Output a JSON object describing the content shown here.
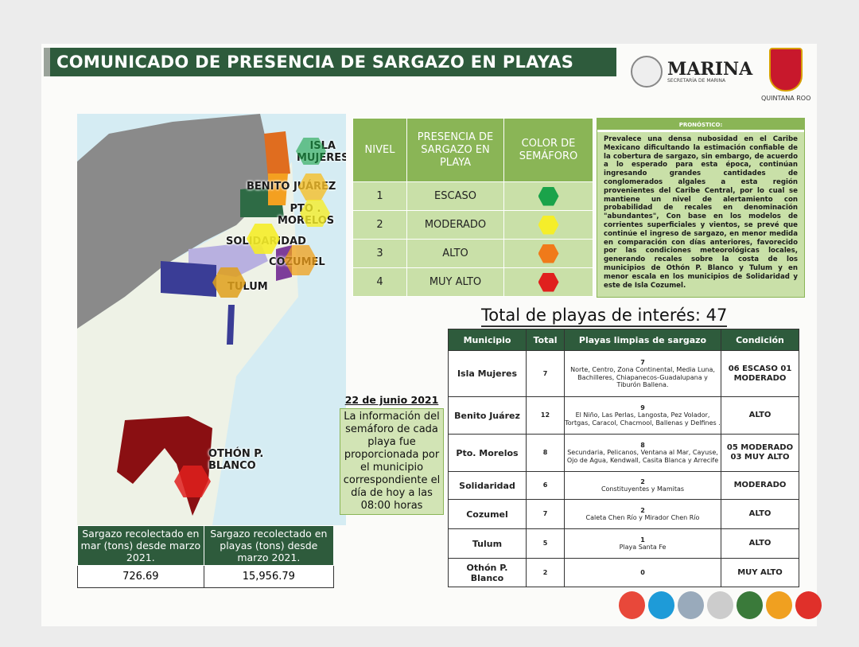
{
  "header": {
    "title": "COMUNICADO DE PRESENCIA DE SARGAZO EN PLAYAS",
    "marina": "MARINA",
    "marina_sub": "SECRETARÍA DE MARINA",
    "state": "QUINTANA ROO"
  },
  "map": {
    "labels": [
      "ISLA MUJERES",
      "BENITO JUÁREZ",
      "PTO . MORELOS",
      "SOLIDARIDAD",
      "COZUMEL",
      "TULUM",
      "OTHÓN P. BLANCO"
    ]
  },
  "stats": {
    "headers": [
      "Sargazo recolectado en mar (tons) desde marzo 2021.",
      "Sargazo recolectado en playas (tons) desde marzo 2021."
    ],
    "values": [
      "726.69",
      "15,956.79"
    ]
  },
  "legend": {
    "headers": [
      "NIVEL",
      "PRESENCIA DE SARGAZO EN PLAYA",
      "COLOR DE SEMÁFORO"
    ],
    "rows": [
      {
        "level": "1",
        "label": "ESCASO",
        "color": "#1aa34a"
      },
      {
        "level": "2",
        "label": "MODERADO",
        "color": "#f5ee2a"
      },
      {
        "level": "3",
        "label": "ALTO",
        "color": "#f07a1a"
      },
      {
        "level": "4",
        "label": "MUY ALTO",
        "color": "#e0201e"
      }
    ]
  },
  "forecast": {
    "title": "PRONÓSTICO:",
    "text": "Prevalece una densa nubosidad en el Caribe Mexicano dificultando la estimación confiable de la cobertura de sargazo, sin embargo, de acuerdo a lo esperado para esta época, continúan ingresando grandes cantidades de conglomerados algales a esta región provenientes del Caribe Central, por lo cual se mantiene un nivel de alertamiento con probabilidad de recales en denominación \"abundantes\", Con base en los modelos de corrientes superficiales y vientos, se prevé que continúe el ingreso de sargazo, en menor medida en comparación con días anteriores, favorecido por las condiciones meteorológicas locales, generando recales sobre la costa de los municipios de Othón P. Blanco y Tulum y en menor escala en los municipios de Solidaridad y este de Isla Cozumel."
  },
  "total": "Total de playas de interés: 47",
  "date": {
    "date": "22 de junio 2021",
    "note": "La información del semáforo de cada playa fue proporcionada por el municipio correspondiente el día de hoy a las 08:00 horas"
  },
  "table": {
    "headers": [
      "Municipio",
      "Total",
      "Playas limpias de sargazo",
      "Condición"
    ],
    "rows": [
      {
        "municipio": "Isla Mujeres",
        "total": "7",
        "limpias_count": "7",
        "limpias": "Norte, Centro, Zona Continental, Media Luna, Bachilleres, Chiapanecos-Guadalupana y Tiburón Ballena.",
        "condicion": "06 ESCASO 01 MODERADO"
      },
      {
        "municipio": "Benito Juárez",
        "total": "12",
        "limpias_count": "9",
        "limpias": "El Niño, Las Perlas, Langosta, Pez Volador, Tortgas, Caracol, Chacmool, Ballenas y Delfines .",
        "condicion": "ALTO"
      },
      {
        "municipio": "Pto. Morelos",
        "total": "8",
        "limpias_count": "8",
        "limpias": "Secundaria, Pelicanos, Ventana al Mar, Cayuse, Ojo de Agua, Kendwall, Casita Blanca y Arrecife",
        "condicion": "05 MODERADO 03 MUY ALTO"
      },
      {
        "municipio": "Solidaridad",
        "total": "6",
        "limpias_count": "2",
        "limpias": "Constituyentes y Mamitas",
        "condicion": "MODERADO"
      },
      {
        "municipio": "Cozumel",
        "total": "7",
        "limpias_count": "2",
        "limpias": "Caleta Chen Río y Mirador Chen Río",
        "condicion": "ALTO"
      },
      {
        "municipio": "Tulum",
        "total": "5",
        "limpias_count": "1",
        "limpias": "Playa Santa Fe",
        "condicion": "ALTO"
      },
      {
        "municipio": "Othón P. Blanco",
        "total": "2",
        "limpias_count": "0",
        "limpias": "",
        "condicion": "MUY ALTO"
      }
    ]
  }
}
